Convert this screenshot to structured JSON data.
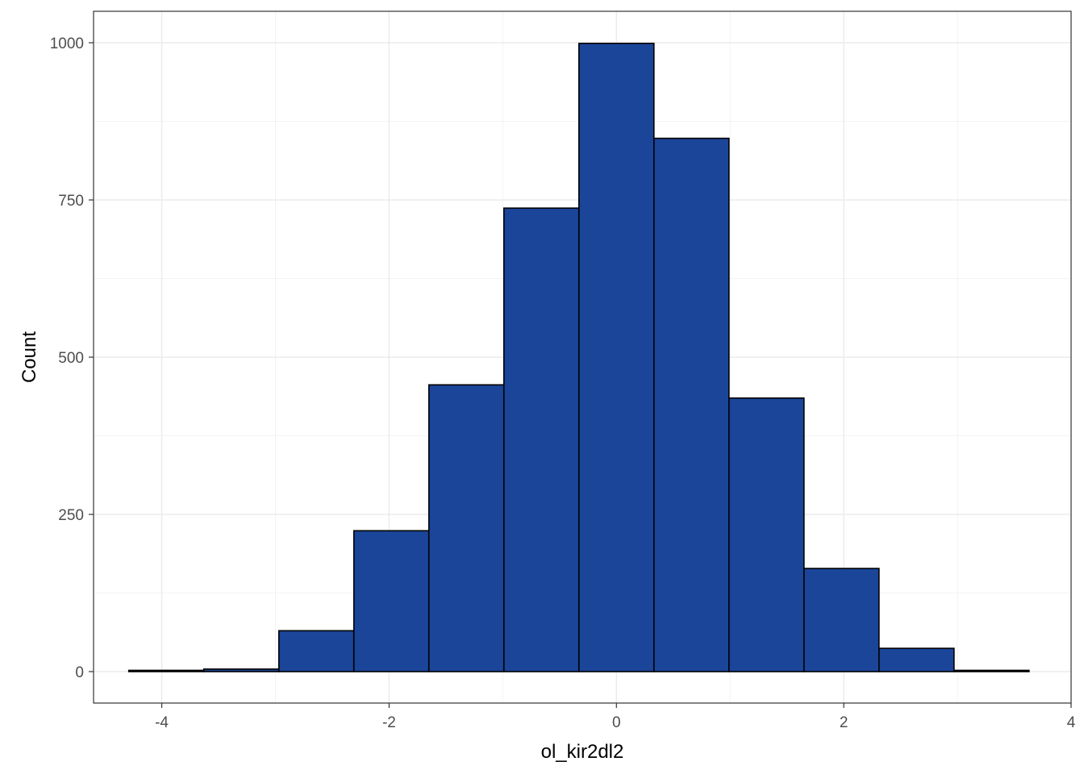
{
  "chart_data": {
    "type": "bar",
    "subtype": "histogram",
    "title": "",
    "xlabel": "ol_kir2dl2",
    "ylabel": "Count",
    "xlim": [
      -4.6,
      4.0
    ],
    "ylim": [
      -50,
      1050
    ],
    "x_ticks": [
      -4,
      -2,
      0,
      2,
      4
    ],
    "x_tick_labels": [
      "-4",
      "-2",
      "0",
      "2",
      "4"
    ],
    "y_ticks": [
      0,
      250,
      500,
      750,
      1000
    ],
    "y_tick_labels": [
      "0",
      "250",
      "500",
      "750",
      "1000"
    ],
    "grid": true,
    "legend": "none",
    "bins": [
      {
        "x0": -4.29,
        "x1": -3.63,
        "count": 2
      },
      {
        "x0": -3.63,
        "x1": -2.97,
        "count": 4
      },
      {
        "x0": -2.97,
        "x1": -2.31,
        "count": 65
      },
      {
        "x0": -2.31,
        "x1": -1.65,
        "count": 224
      },
      {
        "x0": -1.65,
        "x1": -0.99,
        "count": 456
      },
      {
        "x0": -0.99,
        "x1": -0.33,
        "count": 737
      },
      {
        "x0": -0.33,
        "x1": 0.33,
        "count": 999
      },
      {
        "x0": 0.33,
        "x1": 0.99,
        "count": 848
      },
      {
        "x0": 0.99,
        "x1": 1.65,
        "count": 435
      },
      {
        "x0": 1.65,
        "x1": 2.31,
        "count": 164
      },
      {
        "x0": 2.31,
        "x1": 2.97,
        "count": 37
      },
      {
        "x0": 2.97,
        "x1": 3.63,
        "count": 2
      }
    ],
    "colors": {
      "bar_fill": "#1a4599",
      "bar_stroke": "#000000",
      "grid_major": "#ebebeb",
      "grid_minor": "#f3f3f3",
      "panel_border": "#333333",
      "tick_label": "#4d4d4d"
    }
  }
}
